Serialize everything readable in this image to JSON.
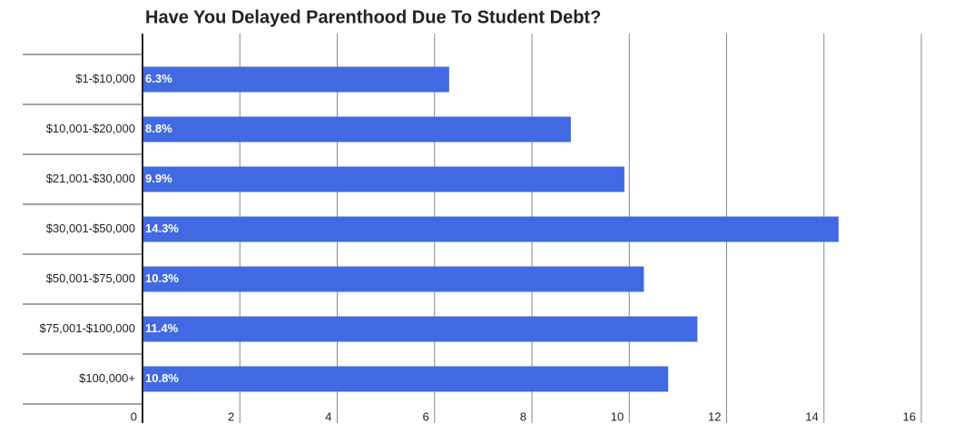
{
  "chart_data": {
    "type": "bar",
    "orientation": "horizontal",
    "title": "Have You Delayed Parenthood Due To Student Debt?",
    "categories": [
      "$1-$10,000",
      "$10,001-$20,000",
      "$21,001-$30,000",
      "$30,001-$50,000",
      "$50,001-$75,000",
      "$75,001-$100,000",
      "$100,000+"
    ],
    "values": [
      6.3,
      8.8,
      9.9,
      14.3,
      10.3,
      11.4,
      10.8
    ],
    "value_labels": [
      "6.3%",
      "8.8%",
      "9.9%",
      "14.3%",
      "10.3%",
      "11.4%",
      "10.8%"
    ],
    "color": "#4169e1",
    "xlim": [
      0,
      16
    ],
    "xticks": [
      0,
      2,
      4,
      6,
      8,
      10,
      12,
      14,
      16
    ],
    "grid": true
  }
}
